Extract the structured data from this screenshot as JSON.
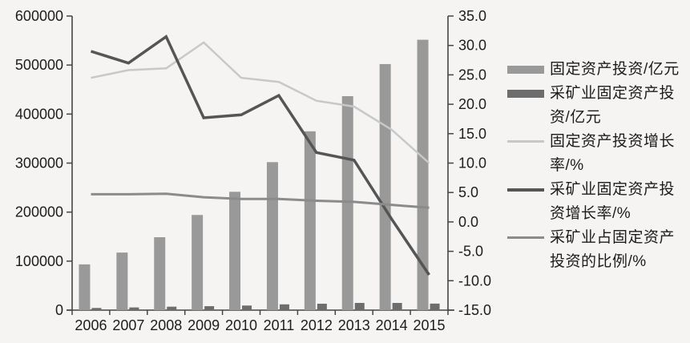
{
  "chart_data": {
    "type": "combo-bar-line",
    "title": "",
    "categories": [
      "2006",
      "2007",
      "2008",
      "2009",
      "2010",
      "2011",
      "2012",
      "2013",
      "2014",
      "2015"
    ],
    "left_axis": {
      "min": 0,
      "max": 600000,
      "step": 100000,
      "ticks": [
        "0",
        "100000",
        "200000",
        "300000",
        "400000",
        "500000",
        "600000"
      ]
    },
    "right_axis": {
      "min": -15,
      "max": 35,
      "step": 5,
      "ticks": [
        "-15.0",
        "-10.0",
        "-5.0",
        "0.0",
        "5.0",
        "10.0",
        "15.0",
        "20.0",
        "25.0",
        "30.0",
        "35.0"
      ]
    },
    "grid": "off",
    "legend_position": "right",
    "series": [
      {
        "name": "固定资产投资/亿元",
        "type": "bar",
        "axis": "left",
        "color": "#999999",
        "values": [
          93369,
          117464,
          148738,
          194139,
          241431,
          301933,
          364835,
          436528,
          502005,
          551590
        ]
      },
      {
        "name": "采矿业固定资产投资/亿元",
        "type": "bar",
        "axis": "left",
        "color": "#6d6d6d",
        "values": [
          4417,
          5539,
          7071,
          8117,
          9393,
          11805,
          13129,
          14750,
          14681,
          13331
        ]
      },
      {
        "name": "固定资产投资增长率/%",
        "type": "line",
        "axis": "right",
        "color": "#c8c8c8",
        "stroke_width": 2.5,
        "values": [
          24.5,
          25.8,
          26.1,
          30.5,
          24.5,
          23.8,
          20.6,
          19.6,
          15.7,
          10.0
        ]
      },
      {
        "name": "采矿业固定资产投资增长率/%",
        "type": "line",
        "axis": "right",
        "color": "#555555",
        "stroke_width": 3.5,
        "values": [
          29.0,
          27.0,
          31.5,
          17.7,
          18.2,
          21.5,
          11.8,
          10.5,
          0.5,
          -9.0
        ]
      },
      {
        "name": "采矿业占固定资产投资的比例/%",
        "type": "line",
        "axis": "right",
        "color": "#8b8b8b",
        "stroke_width": 3,
        "values": [
          4.7,
          4.7,
          4.8,
          4.2,
          3.9,
          3.9,
          3.6,
          3.4,
          2.9,
          2.4
        ]
      }
    ],
    "axis_color": "#454545",
    "text_color": "#1d1d1d"
  }
}
